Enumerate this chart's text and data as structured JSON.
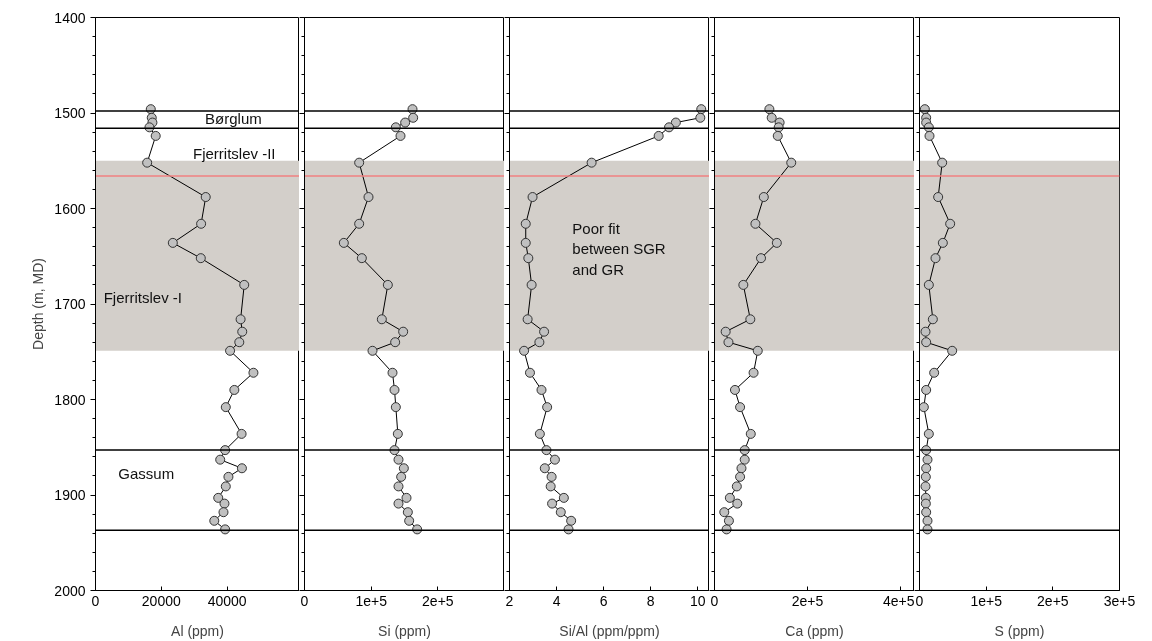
{
  "chart_data": [
    {
      "type": "line",
      "marker": "circle",
      "color": "#c0c0c0",
      "xlabel": "Al (ppm)",
      "ylabel": "Depth (m, MD)",
      "x": [
        16800,
        17100,
        17300,
        16400,
        18300,
        15700,
        33500,
        32100,
        23500,
        32000,
        45200,
        44100,
        44600,
        43700,
        40900,
        48000,
        42200,
        39600,
        44400,
        39400,
        37900,
        44500,
        40400,
        39600,
        37300,
        39200,
        38900,
        36100,
        39400
      ],
      "values": [
        1496,
        1505,
        1510,
        1515,
        1524,
        1552,
        1588,
        1616,
        1636,
        1652,
        1680,
        1716,
        1729,
        1740,
        1749,
        1772,
        1790,
        1808,
        1836,
        1853,
        1863,
        1872,
        1881,
        1891,
        1903,
        1909,
        1918,
        1927,
        1936
      ],
      "xlim": [
        0,
        62000
      ],
      "xticks": [
        0,
        20000,
        40000
      ],
      "ylim": [
        2000,
        1400
      ],
      "yticks": [
        1400,
        1500,
        1600,
        1700,
        1800,
        1900,
        2000
      ],
      "ref_lines": [
        {
          "axis": "y",
          "value": 1498,
          "color": "#000000"
        },
        {
          "axis": "y",
          "value": 1516,
          "color": "#000000"
        },
        {
          "axis": "y",
          "value": 1566,
          "color": "#f08080"
        },
        {
          "axis": "y",
          "value": 1853,
          "color": "#000000"
        },
        {
          "axis": "y",
          "value": 1937,
          "color": "#000000"
        }
      ],
      "bands": [
        {
          "axis": "y",
          "from": 1550,
          "to": 1749,
          "color": "#d3cfca"
        }
      ],
      "annotations": [
        "Børglum",
        "Fjerritslev -II",
        "Fjerritslev -I",
        "Gassum"
      ]
    },
    {
      "type": "line",
      "marker": "circle",
      "color": "#c0c0c0",
      "xlabel": "Si (ppm)",
      "tick_labels": "x",
      "x": [
        162000,
        163000,
        151000,
        137000,
        144000,
        82000,
        96000,
        82000,
        59000,
        86000,
        125000,
        116000,
        148000,
        136000,
        102000,
        132000,
        135000,
        137000,
        140000,
        135000,
        141000,
        149000,
        145000,
        141000,
        153000,
        141000,
        155000,
        157000,
        169000
      ],
      "values": [
        1496,
        1505,
        1510,
        1515,
        1524,
        1552,
        1588,
        1616,
        1636,
        1652,
        1680,
        1716,
        1729,
        1740,
        1749,
        1772,
        1790,
        1808,
        1836,
        1853,
        1863,
        1872,
        1881,
        1891,
        1903,
        1909,
        1918,
        1927,
        1936
      ],
      "xlim": [
        0,
        300000
      ],
      "xticks": [
        0,
        {
          "value": 100000,
          "label": "1e+5"
        },
        {
          "value": 200000,
          "label": "2e+5"
        }
      ],
      "ylim": [
        2000,
        1400
      ],
      "yticks": [
        1400,
        1500,
        1600,
        1700,
        1800,
        1900,
        2000
      ],
      "ref_lines": [
        {
          "axis": "y",
          "value": 1498,
          "color": "#000000"
        },
        {
          "axis": "y",
          "value": 1516,
          "color": "#000000"
        },
        {
          "axis": "y",
          "value": 1566,
          "color": "#f08080"
        },
        {
          "axis": "y",
          "value": 1853,
          "color": "#000000"
        },
        {
          "axis": "y",
          "value": 1937,
          "color": "#000000"
        }
      ],
      "bands": [
        {
          "axis": "y",
          "from": 1550,
          "to": 1749,
          "color": "#d3cfca"
        }
      ]
    },
    {
      "type": "line",
      "marker": "circle",
      "color": "#c0c0c0",
      "xlabel": "Si/Al (ppm/ppm)",
      "tick_labels": "x",
      "x": [
        10.15,
        10.11,
        9.07,
        8.78,
        8.34,
        5.49,
        2.98,
        2.69,
        2.69,
        2.8,
        2.94,
        2.77,
        3.47,
        3.27,
        2.62,
        2.87,
        3.36,
        3.6,
        3.29,
        3.57,
        3.93,
        3.5,
        3.79,
        3.75,
        4.31,
        3.81,
        4.18,
        4.62,
        4.51
      ],
      "values": [
        1496,
        1505,
        1510,
        1515,
        1524,
        1552,
        1588,
        1616,
        1636,
        1652,
        1680,
        1716,
        1729,
        1740,
        1749,
        1772,
        1790,
        1808,
        1836,
        1853,
        1863,
        1872,
        1881,
        1891,
        1903,
        1909,
        1918,
        1927,
        1936
      ],
      "xlim": [
        2,
        10.5
      ],
      "xticks": [
        2,
        4,
        6,
        8,
        10
      ],
      "ylim": [
        2000,
        1400
      ],
      "yticks": [
        1400,
        1500,
        1600,
        1700,
        1800,
        1900,
        2000
      ],
      "ref_lines": [
        {
          "axis": "y",
          "value": 1498,
          "color": "#000000"
        },
        {
          "axis": "y",
          "value": 1516,
          "color": "#000000"
        },
        {
          "axis": "y",
          "value": 1566,
          "color": "#f08080"
        },
        {
          "axis": "y",
          "value": 1853,
          "color": "#000000"
        },
        {
          "axis": "y",
          "value": 1937,
          "color": "#000000"
        }
      ],
      "bands": [
        {
          "axis": "y",
          "from": 1550,
          "to": 1749,
          "color": "#d3cfca"
        }
      ],
      "annotations": [
        "Poor fit\nbetween SGR\nand GR"
      ]
    },
    {
      "type": "line",
      "marker": "circle",
      "color": "#c0c0c0",
      "xlabel": "Ca (ppm)",
      "tick_labels": "x",
      "x": [
        118000,
        123000,
        140000,
        138000,
        136000,
        165000,
        106000,
        88000,
        134000,
        100000,
        62000,
        77000,
        24000,
        30000,
        93000,
        84000,
        44000,
        55000,
        78000,
        65000,
        65000,
        58000,
        55000,
        48000,
        33000,
        49000,
        21000,
        31000,
        26000
      ],
      "values": [
        1496,
        1505,
        1510,
        1515,
        1524,
        1552,
        1588,
        1616,
        1636,
        1652,
        1680,
        1716,
        1729,
        1740,
        1749,
        1772,
        1790,
        1808,
        1836,
        1853,
        1863,
        1872,
        1881,
        1891,
        1903,
        1909,
        1918,
        1927,
        1936
      ],
      "xlim": [
        0,
        430000
      ],
      "xticks": [
        0,
        {
          "value": 200000,
          "label": "2e+5"
        },
        {
          "value": 400000,
          "label": "4e+5"
        }
      ],
      "ylim": [
        2000,
        1400
      ],
      "yticks": [
        1400,
        1500,
        1600,
        1700,
        1800,
        1900,
        2000
      ],
      "ref_lines": [
        {
          "axis": "y",
          "value": 1498,
          "color": "#000000"
        },
        {
          "axis": "y",
          "value": 1516,
          "color": "#000000"
        },
        {
          "axis": "y",
          "value": 1566,
          "color": "#f08080"
        },
        {
          "axis": "y",
          "value": 1853,
          "color": "#000000"
        },
        {
          "axis": "y",
          "value": 1937,
          "color": "#000000"
        }
      ],
      "bands": [
        {
          "axis": "y",
          "from": 1550,
          "to": 1749,
          "color": "#d3cfca"
        }
      ]
    },
    {
      "type": "line",
      "marker": "circle",
      "color": "#c0c0c0",
      "xlabel": "S (ppm)",
      "tick_labels": "x",
      "x": [
        8000,
        10000,
        10000,
        14000,
        15000,
        34000,
        28000,
        46000,
        35000,
        24000,
        14000,
        20000,
        9000,
        10000,
        49000,
        22000,
        10000,
        6500,
        14000,
        10000,
        12000,
        10000,
        9500,
        9000,
        9500,
        9500,
        10000,
        12000,
        12000
      ],
      "values": [
        1496,
        1505,
        1510,
        1515,
        1524,
        1552,
        1588,
        1616,
        1636,
        1652,
        1680,
        1716,
        1729,
        1740,
        1749,
        1772,
        1790,
        1808,
        1836,
        1853,
        1863,
        1872,
        1881,
        1891,
        1903,
        1909,
        1918,
        1927,
        1936
      ],
      "xlim": [
        0,
        300000
      ],
      "xticks": [
        0,
        {
          "value": 100000,
          "label": "1e+5"
        },
        {
          "value": 200000,
          "label": "2e+5"
        },
        {
          "value": 300000,
          "label": "3e+5"
        }
      ],
      "ylim": [
        2000,
        1400
      ],
      "yticks": [
        1400,
        1500,
        1600,
        1700,
        1800,
        1900,
        2000
      ],
      "ref_lines": [
        {
          "axis": "y",
          "value": 1498,
          "color": "#000000"
        },
        {
          "axis": "y",
          "value": 1516,
          "color": "#000000"
        },
        {
          "axis": "y",
          "value": 1566,
          "color": "#f08080"
        },
        {
          "axis": "y",
          "value": 1853,
          "color": "#000000"
        },
        {
          "axis": "y",
          "value": 1937,
          "color": "#000000"
        }
      ],
      "bands": [
        {
          "axis": "y",
          "from": 1550,
          "to": 1749,
          "color": "#d3cfca"
        }
      ]
    }
  ]
}
